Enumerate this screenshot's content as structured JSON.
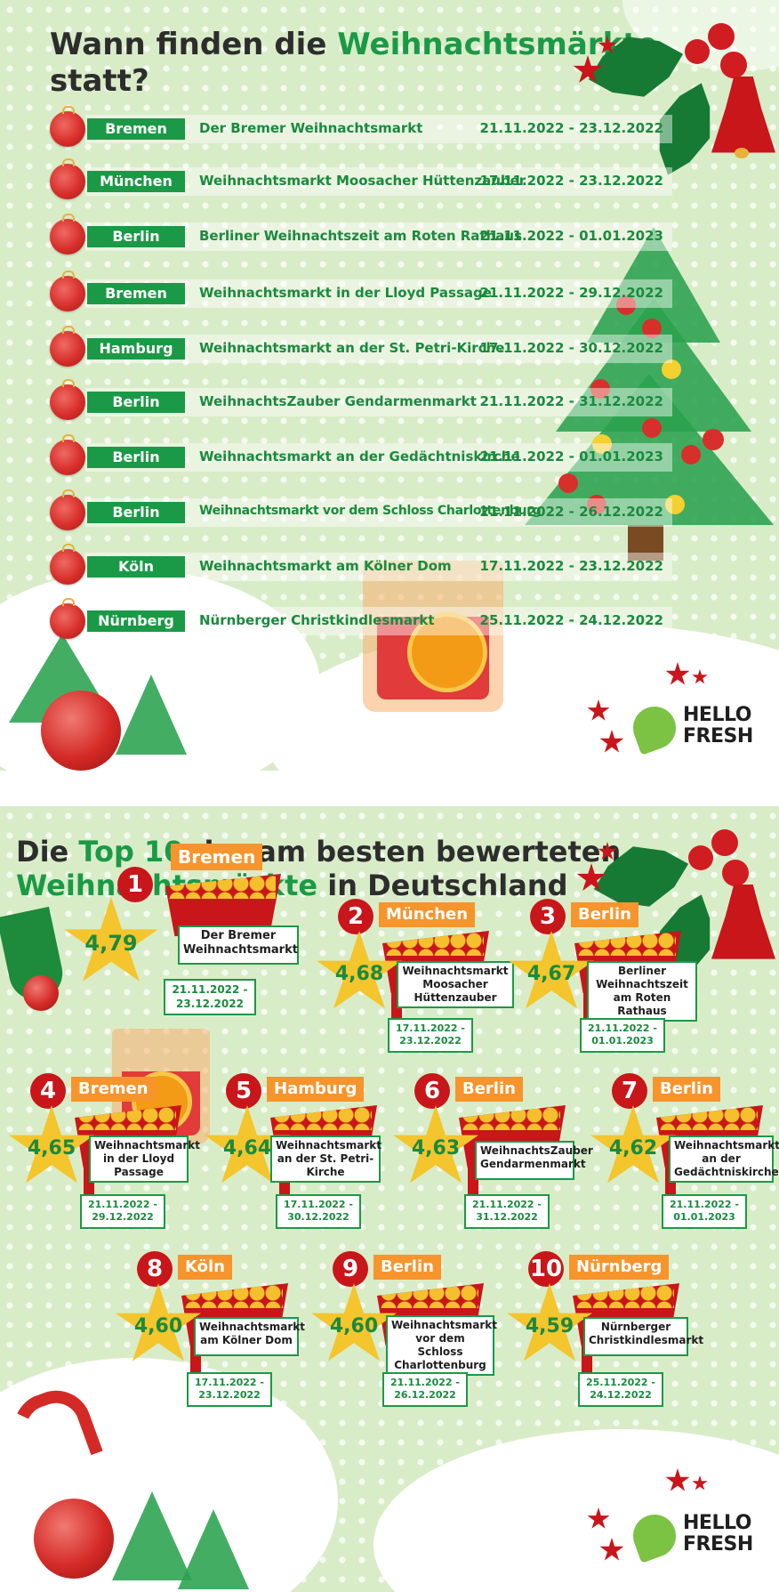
{
  "section1": {
    "title_part1": "Wann finden die ",
    "title_highlight": "Weihnachtsmärkte",
    "title_part2": "statt?",
    "rows": [
      {
        "city": "Bremen",
        "market": "Der Bremer Weihnachtsmarkt",
        "dates": "21.11.2022 - 23.12.2022"
      },
      {
        "city": "München",
        "market": "Weihnachtsmarkt Moosacher Hüttenzauber",
        "dates": "17.11.2022 - 23.12.2022"
      },
      {
        "city": "Berlin",
        "market": "Berliner Weihnachtszeit am Roten Rathaus",
        "dates": "21.11.2022 - 01.01.2023"
      },
      {
        "city": "Bremen",
        "market": "Weihnachtsmarkt in der Lloyd Passage",
        "dates": "21.11.2022 - 29.12.2022"
      },
      {
        "city": "Hamburg",
        "market": "Weihnachtsmarkt an der St. Petri-Kirche",
        "dates": "17.11.2022 - 30.12.2022"
      },
      {
        "city": "Berlin",
        "market": "WeihnachtsZauber Gendarmenmarkt",
        "dates": "21.11.2022 - 31.12.2022"
      },
      {
        "city": "Berlin",
        "market": "Weihnachtsmarkt an der Gedächtniskirche",
        "dates": "21.11.2022 - 01.01.2023"
      },
      {
        "city": "Berlin",
        "market": "Weihnachtsmarkt vor dem Schloss Charlottenburg",
        "dates": "21.11.2022 - 26.12.2022"
      },
      {
        "city": "Köln",
        "market": "Weihnachtsmarkt am Kölner Dom",
        "dates": "17.11.2022 - 23.12.2022"
      },
      {
        "city": "Nürnberg",
        "market": "Nürnberger Christkindlesmarkt",
        "dates": "25.11.2022 - 24.12.2022"
      }
    ]
  },
  "section2": {
    "title_part1": "Die ",
    "title_highlight1": "Top 10",
    "title_part2": " der am besten bewerteten",
    "title_highlight2": "Weihnachtsmärkte",
    "title_part3": " in Deutschland",
    "ranks": [
      {
        "rank": "1",
        "city": "Bremen",
        "score": "4,79",
        "market": "Der Bremer Weihnachtsmarkt",
        "dates": "21.11.2022 - 23.12.2022"
      },
      {
        "rank": "2",
        "city": "München",
        "score": "4,68",
        "market": "Weihnachtsmarkt Moosacher Hüttenzauber",
        "dates": "17.11.2022 - 23.12.2022"
      },
      {
        "rank": "3",
        "city": "Berlin",
        "score": "4,67",
        "market": "Berliner Weihnachtszeit am Roten Rathaus",
        "dates": "21.11.2022 - 01.01.2023"
      },
      {
        "rank": "4",
        "city": "Bremen",
        "score": "4,65",
        "market": "Weihnachtsmarkt in der Lloyd Passage",
        "dates": "21.11.2022 - 29.12.2022"
      },
      {
        "rank": "5",
        "city": "Hamburg",
        "score": "4,64",
        "market": "Weihnachtsmarkt an der St. Petri-Kirche",
        "dates": "17.11.2022 - 30.12.2022"
      },
      {
        "rank": "6",
        "city": "Berlin",
        "score": "4,63",
        "market": "WeihnachtsZauber Gendarmenmarkt",
        "dates": "21.11.2022 - 31.12.2022"
      },
      {
        "rank": "7",
        "city": "Berlin",
        "score": "4,62",
        "market": "Weihnachtsmarkt an der Gedächtniskirche",
        "dates": "21.11.2022 - 01.01.2023"
      },
      {
        "rank": "8",
        "city": "Köln",
        "score": "4,60",
        "market": "Weihnachtsmarkt am Kölner Dom",
        "dates": "17.11.2022 - 23.12.2022"
      },
      {
        "rank": "9",
        "city": "Berlin",
        "score": "4,60",
        "market": "Weihnachtsmarkt vor dem Schloss Charlottenburg",
        "dates": "21.11.2022 - 26.12.2022"
      },
      {
        "rank": "10",
        "city": "Nürnberg",
        "score": "4,59",
        "market": "Nürnberger Christkindlesmarkt",
        "dates": "25.11.2022 - 24.12.2022"
      }
    ]
  },
  "logo": {
    "line1": "HELLO",
    "line2": "FRESH"
  },
  "colors": {
    "green": "#1a9a46",
    "red": "#c8161a",
    "orange": "#f7942b",
    "gold": "#f4c52c",
    "background": "#d9ecc8"
  }
}
